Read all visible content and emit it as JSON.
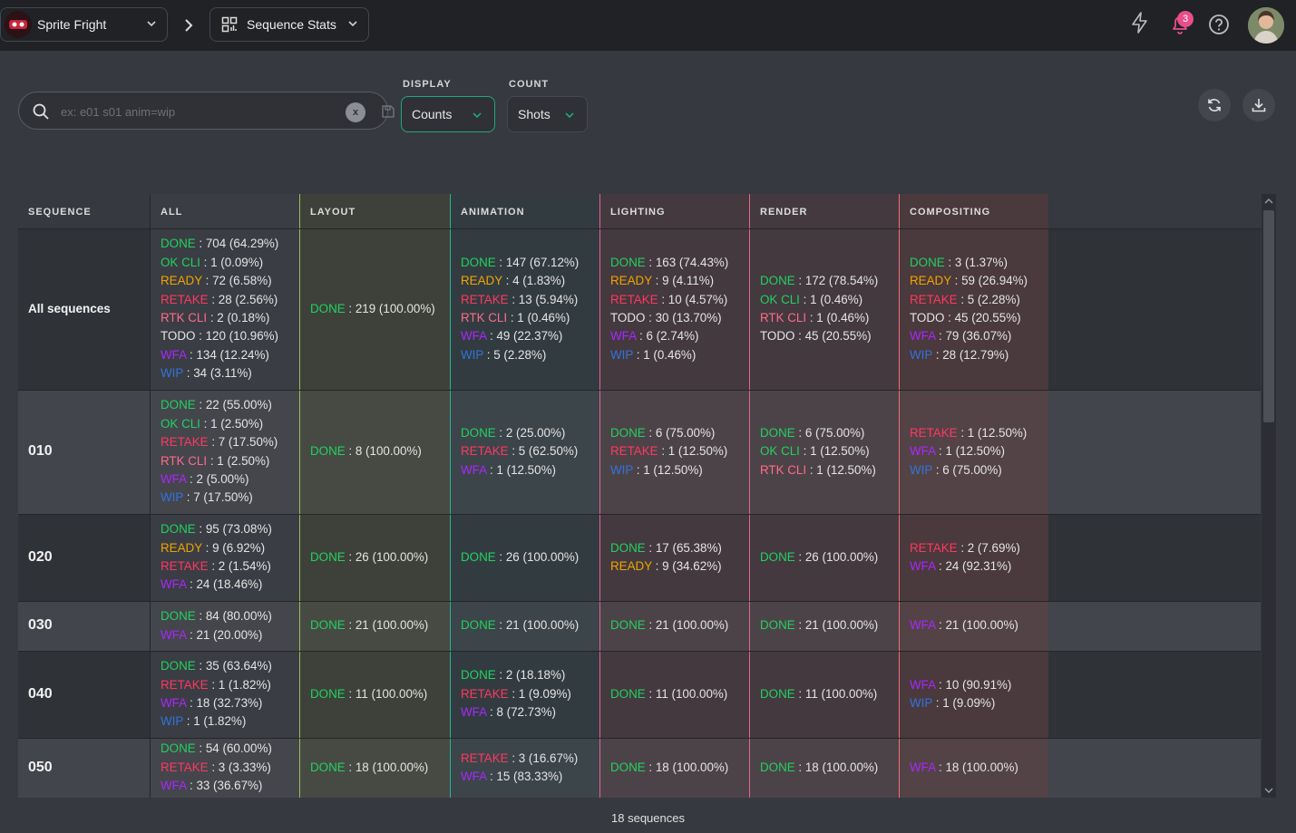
{
  "header": {
    "production": "Sprite Fright",
    "page": "Sequence Stats",
    "notification_count": "3"
  },
  "filters": {
    "search_placeholder": "ex: e01 s01 anim=wip",
    "clear_label": "x",
    "display_label": "DISPLAY",
    "display_value": "Counts",
    "count_label": "COUNT",
    "count_value": "Shots"
  },
  "status_colors": {
    "DONE": "#22d160",
    "OK CLI": "#22d160",
    "READY": "#f1a400",
    "RETAKE": "#ff3860",
    "RTK CLI": "#ff6b8a",
    "TODO": "#e4e4e4",
    "WFA": "#ab26ff",
    "WIP": "#3273dc"
  },
  "table": {
    "columns": [
      {
        "label": "SEQUENCE",
        "bg": "#36393f",
        "border": ""
      },
      {
        "label": "ALL",
        "bg": "#3a3d43",
        "border": "#24262a"
      },
      {
        "label": "LAYOUT",
        "bg": "#3d4139",
        "border": "#9fbd5a"
      },
      {
        "label": "ANIMATION",
        "bg": "#323c40",
        "border": "#27b3a0"
      },
      {
        "label": "LIGHTING",
        "bg": "#43393f",
        "border": "#e0668c"
      },
      {
        "label": "RENDER",
        "bg": "#43393f",
        "border": "#e0668c"
      },
      {
        "label": "COMPOSITING",
        "bg": "#4a393d",
        "border": "#f06e7a"
      }
    ],
    "rows": [
      {
        "name": "All sequences",
        "cells": [
          [
            [
              "DONE",
              "704 (64.29%)"
            ],
            [
              "OK CLI",
              "1 (0.09%)"
            ],
            [
              "READY",
              "72 (6.58%)"
            ],
            [
              "RETAKE",
              "28 (2.56%)"
            ],
            [
              "RTK CLI",
              "2 (0.18%)"
            ],
            [
              "TODO",
              "120 (10.96%)"
            ],
            [
              "WFA",
              "134 (12.24%)"
            ],
            [
              "WIP",
              "34 (3.11%)"
            ]
          ],
          [
            [
              "DONE",
              "219 (100.00%)"
            ]
          ],
          [
            [
              "DONE",
              "147 (67.12%)"
            ],
            [
              "READY",
              "4 (1.83%)"
            ],
            [
              "RETAKE",
              "13 (5.94%)"
            ],
            [
              "RTK CLI",
              "1 (0.46%)"
            ],
            [
              "WFA",
              "49 (22.37%)"
            ],
            [
              "WIP",
              "5 (2.28%)"
            ]
          ],
          [
            [
              "DONE",
              "163 (74.43%)"
            ],
            [
              "READY",
              "9 (4.11%)"
            ],
            [
              "RETAKE",
              "10 (4.57%)"
            ],
            [
              "TODO",
              "30 (13.70%)"
            ],
            [
              "WFA",
              "6 (2.74%)"
            ],
            [
              "WIP",
              "1 (0.46%)"
            ]
          ],
          [
            [
              "DONE",
              "172 (78.54%)"
            ],
            [
              "OK CLI",
              "1 (0.46%)"
            ],
            [
              "RTK CLI",
              "1 (0.46%)"
            ],
            [
              "TODO",
              "45 (20.55%)"
            ]
          ],
          [
            [
              "DONE",
              "3 (1.37%)"
            ],
            [
              "READY",
              "59 (26.94%)"
            ],
            [
              "RETAKE",
              "5 (2.28%)"
            ],
            [
              "TODO",
              "45 (20.55%)"
            ],
            [
              "WFA",
              "79 (36.07%)"
            ],
            [
              "WIP",
              "28 (12.79%)"
            ]
          ]
        ]
      },
      {
        "name": "010",
        "cells": [
          [
            [
              "DONE",
              "22 (55.00%)"
            ],
            [
              "OK CLI",
              "1 (2.50%)"
            ],
            [
              "RETAKE",
              "7 (17.50%)"
            ],
            [
              "RTK CLI",
              "1 (2.50%)"
            ],
            [
              "WFA",
              "2 (5.00%)"
            ],
            [
              "WIP",
              "7 (17.50%)"
            ]
          ],
          [
            [
              "DONE",
              "8 (100.00%)"
            ]
          ],
          [
            [
              "DONE",
              "2 (25.00%)"
            ],
            [
              "RETAKE",
              "5 (62.50%)"
            ],
            [
              "WFA",
              "1 (12.50%)"
            ]
          ],
          [
            [
              "DONE",
              "6 (75.00%)"
            ],
            [
              "RETAKE",
              "1 (12.50%)"
            ],
            [
              "WIP",
              "1 (12.50%)"
            ]
          ],
          [
            [
              "DONE",
              "6 (75.00%)"
            ],
            [
              "OK CLI",
              "1 (12.50%)"
            ],
            [
              "RTK CLI",
              "1 (12.50%)"
            ]
          ],
          [
            [
              "RETAKE",
              "1 (12.50%)"
            ],
            [
              "WFA",
              "1 (12.50%)"
            ],
            [
              "WIP",
              "6 (75.00%)"
            ]
          ]
        ]
      },
      {
        "name": "020",
        "cells": [
          [
            [
              "DONE",
              "95 (73.08%)"
            ],
            [
              "READY",
              "9 (6.92%)"
            ],
            [
              "RETAKE",
              "2 (1.54%)"
            ],
            [
              "WFA",
              "24 (18.46%)"
            ]
          ],
          [
            [
              "DONE",
              "26 (100.00%)"
            ]
          ],
          [
            [
              "DONE",
              "26 (100.00%)"
            ]
          ],
          [
            [
              "DONE",
              "17 (65.38%)"
            ],
            [
              "READY",
              "9 (34.62%)"
            ]
          ],
          [
            [
              "DONE",
              "26 (100.00%)"
            ]
          ],
          [
            [
              "RETAKE",
              "2 (7.69%)"
            ],
            [
              "WFA",
              "24 (92.31%)"
            ]
          ]
        ]
      },
      {
        "name": "030",
        "cells": [
          [
            [
              "DONE",
              "84 (80.00%)"
            ],
            [
              "WFA",
              "21 (20.00%)"
            ]
          ],
          [
            [
              "DONE",
              "21 (100.00%)"
            ]
          ],
          [
            [
              "DONE",
              "21 (100.00%)"
            ]
          ],
          [
            [
              "DONE",
              "21 (100.00%)"
            ]
          ],
          [
            [
              "DONE",
              "21 (100.00%)"
            ]
          ],
          [
            [
              "WFA",
              "21 (100.00%)"
            ]
          ]
        ]
      },
      {
        "name": "040",
        "cells": [
          [
            [
              "DONE",
              "35 (63.64%)"
            ],
            [
              "RETAKE",
              "1 (1.82%)"
            ],
            [
              "WFA",
              "18 (32.73%)"
            ],
            [
              "WIP",
              "1 (1.82%)"
            ]
          ],
          [
            [
              "DONE",
              "11 (100.00%)"
            ]
          ],
          [
            [
              "DONE",
              "2 (18.18%)"
            ],
            [
              "RETAKE",
              "1 (9.09%)"
            ],
            [
              "WFA",
              "8 (72.73%)"
            ]
          ],
          [
            [
              "DONE",
              "11 (100.00%)"
            ]
          ],
          [
            [
              "DONE",
              "11 (100.00%)"
            ]
          ],
          [
            [
              "WFA",
              "10 (90.91%)"
            ],
            [
              "WIP",
              "1 (9.09%)"
            ]
          ]
        ]
      },
      {
        "name": "050",
        "cells": [
          [
            [
              "DONE",
              "54 (60.00%)"
            ],
            [
              "RETAKE",
              "3 (3.33%)"
            ],
            [
              "WFA",
              "33 (36.67%)"
            ]
          ],
          [
            [
              "DONE",
              "18 (100.00%)"
            ]
          ],
          [
            [
              "RETAKE",
              "3 (16.67%)"
            ],
            [
              "WFA",
              "15 (83.33%)"
            ]
          ],
          [
            [
              "DONE",
              "18 (100.00%)"
            ]
          ],
          [
            [
              "DONE",
              "18 (100.00%)"
            ]
          ],
          [
            [
              "WFA",
              "18 (100.00%)"
            ]
          ]
        ]
      }
    ]
  },
  "footer": {
    "count_text": "18 sequences"
  }
}
